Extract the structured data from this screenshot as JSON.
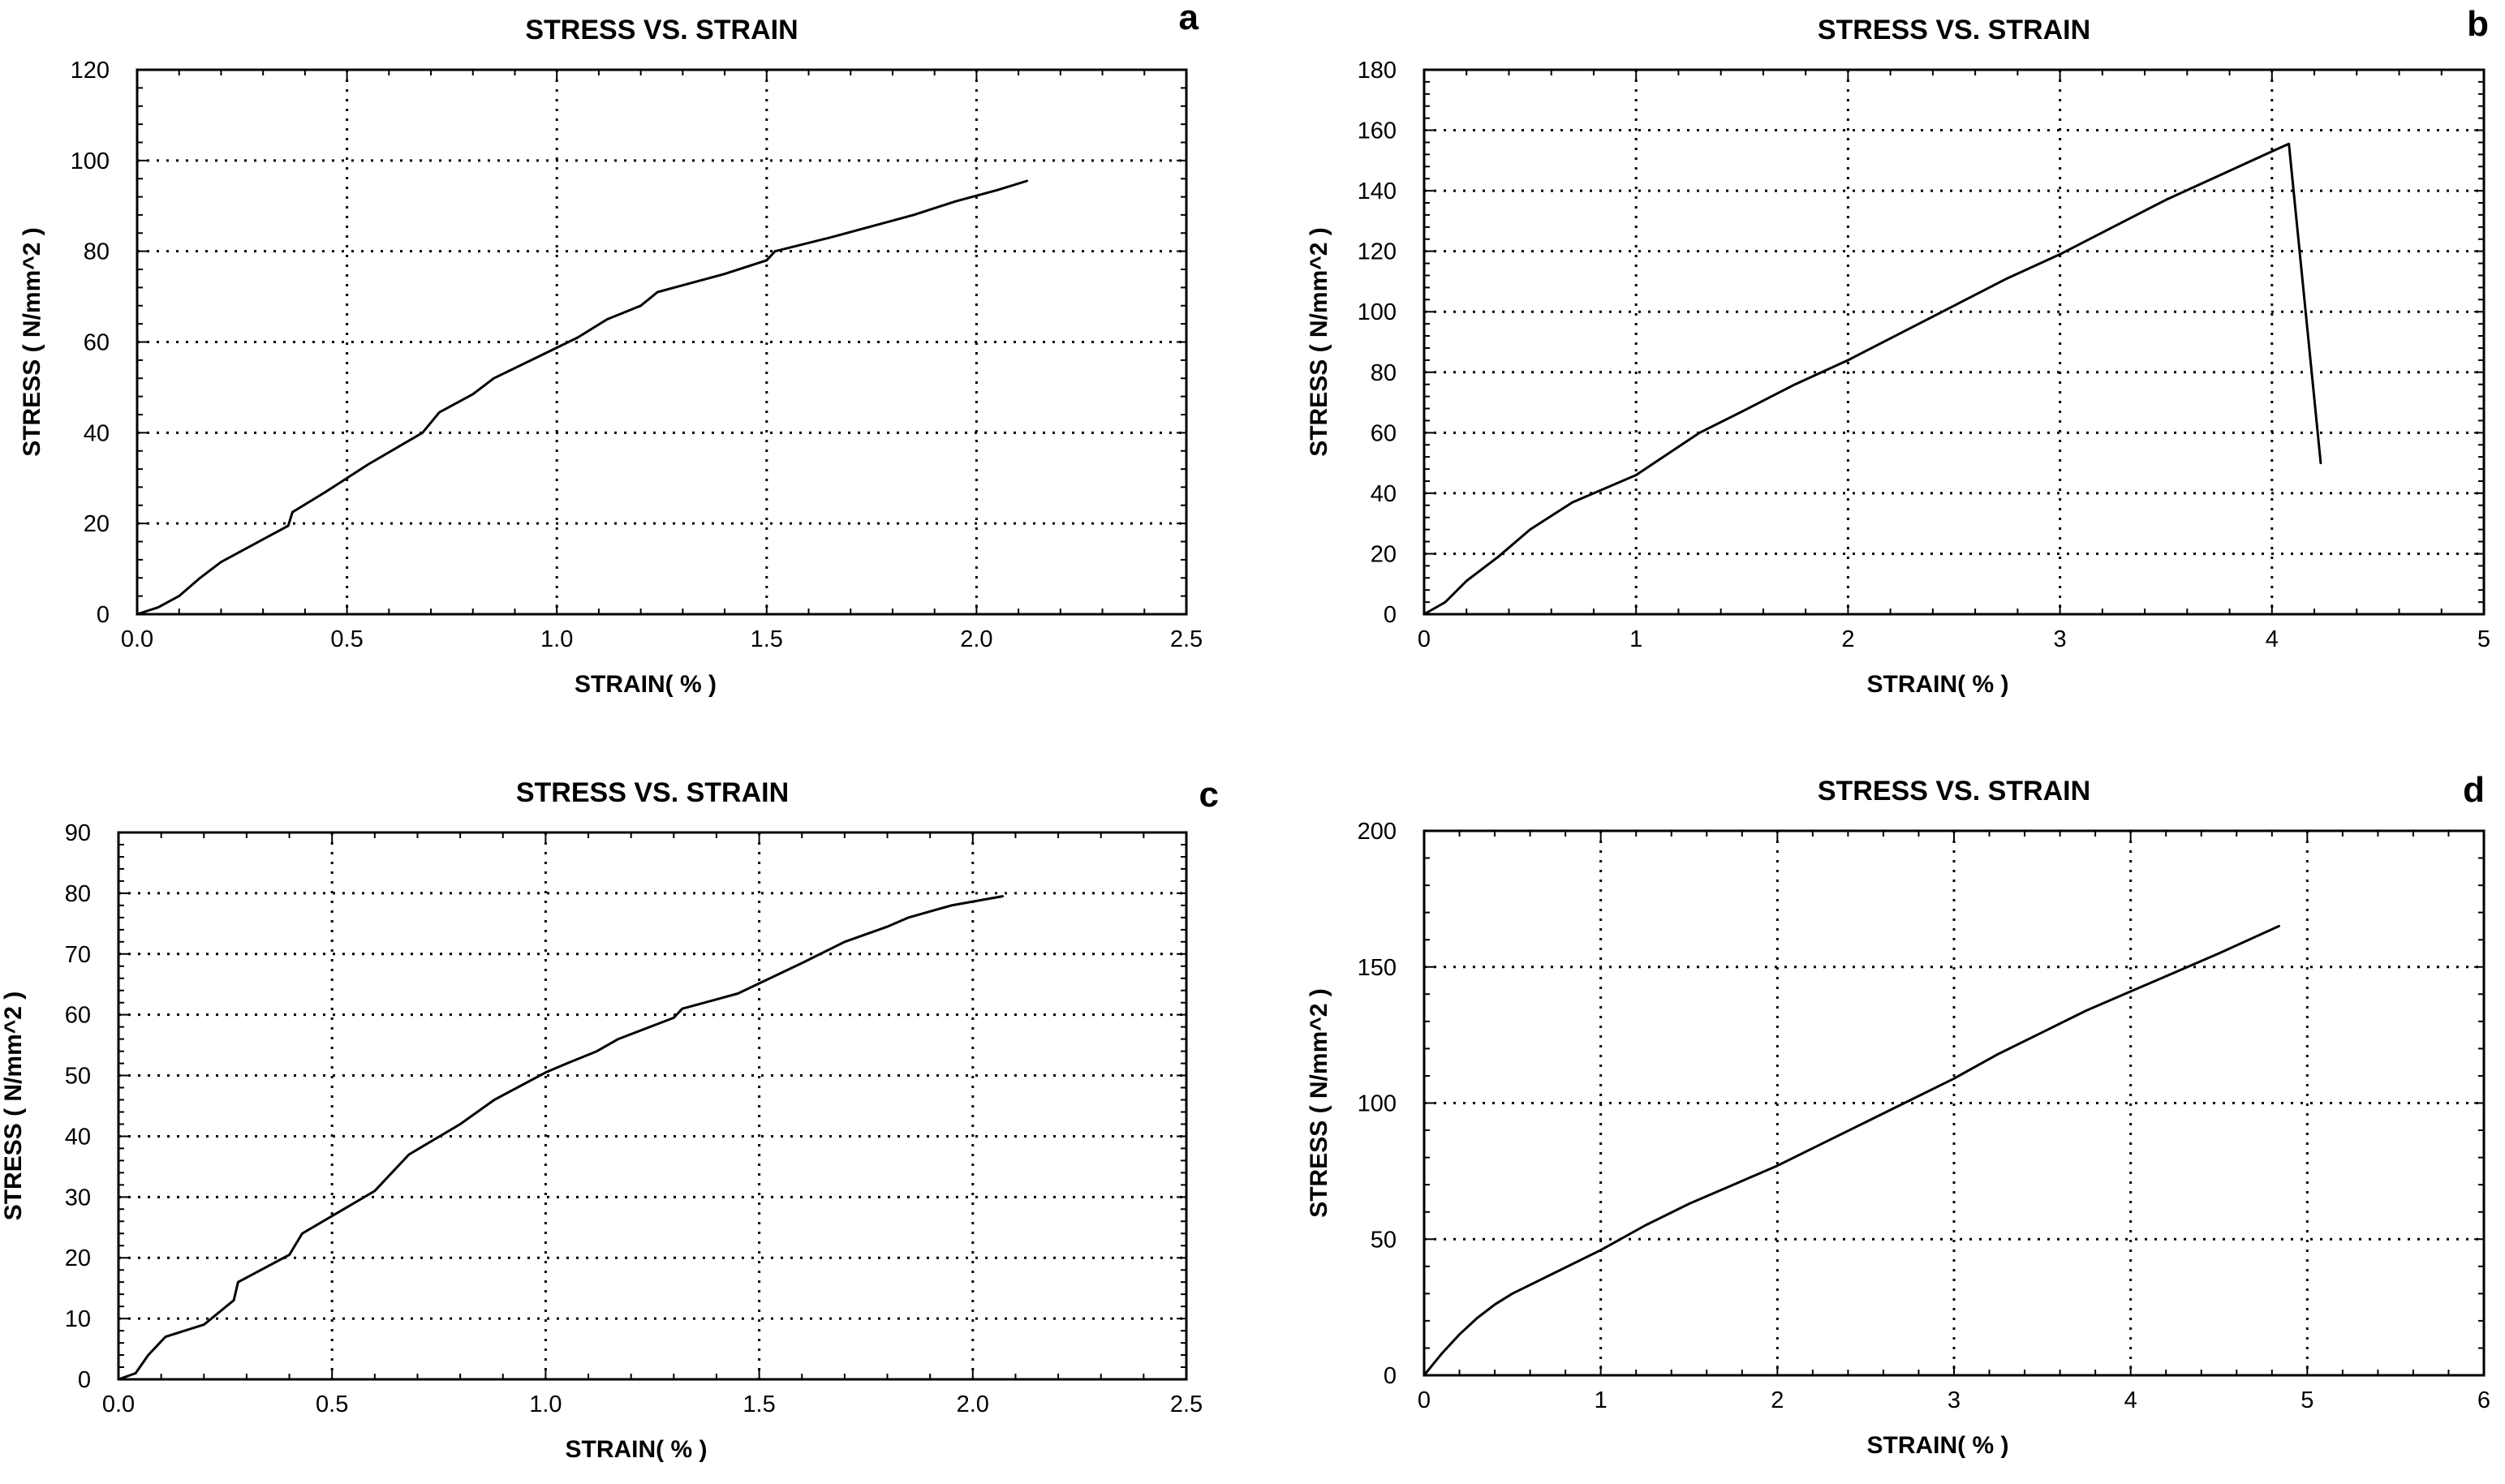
{
  "chart_data": [
    {
      "type": "line",
      "panel_label": "a",
      "title": "STRESS VS. STRAIN",
      "xlabel": "STRAIN( % )",
      "ylabel": "STRESS ( N/mm^2 )",
      "xlim": [
        0,
        2.5
      ],
      "ylim": [
        0,
        120
      ],
      "xticks": [
        "0.0",
        "0.5",
        "1.0",
        "1.5",
        "2.0",
        "2.5"
      ],
      "yticks": [
        "0",
        "20",
        "40",
        "60",
        "80",
        "100",
        "120"
      ],
      "grid": true,
      "x": [
        0.0,
        0.05,
        0.1,
        0.15,
        0.2,
        0.25,
        0.3,
        0.36,
        0.37,
        0.45,
        0.55,
        0.68,
        0.72,
        0.8,
        0.85,
        0.95,
        1.05,
        1.12,
        1.2,
        1.24,
        1.3,
        1.4,
        1.5,
        1.52,
        1.65,
        1.75,
        1.85,
        1.95,
        2.05,
        2.12
      ],
      "y": [
        0,
        1.5,
        4,
        8,
        11.5,
        14,
        16.5,
        19.5,
        22.5,
        27,
        33,
        40,
        44.5,
        48.5,
        52,
        56.5,
        61,
        65,
        68,
        71,
        72.5,
        75,
        78,
        80,
        83,
        85.5,
        88,
        91,
        93.5,
        95.5
      ]
    },
    {
      "type": "line",
      "panel_label": "b",
      "title": "STRESS VS. STRAIN",
      "xlabel": "STRAIN( % )",
      "ylabel": "STRESS ( N/mm^2 )",
      "xlim": [
        0,
        5
      ],
      "ylim": [
        0,
        180
      ],
      "xticks": [
        "0",
        "1",
        "2",
        "3",
        "4",
        "5"
      ],
      "yticks": [
        "0",
        "20",
        "40",
        "60",
        "80",
        "100",
        "120",
        "140",
        "160",
        "180"
      ],
      "grid": true,
      "x": [
        0.0,
        0.1,
        0.2,
        0.35,
        0.5,
        0.7,
        1.0,
        1.3,
        1.5,
        1.75,
        2.0,
        2.25,
        2.5,
        2.75,
        3.0,
        3.25,
        3.5,
        3.75,
        4.0,
        4.08,
        4.23
      ],
      "y": [
        0,
        4,
        11,
        19,
        28,
        37,
        46,
        60,
        67,
        76,
        84,
        93,
        102,
        111,
        119,
        128,
        137,
        145,
        153,
        155.5,
        50
      ]
    },
    {
      "type": "line",
      "panel_label": "c",
      "title": "STRESS VS. STRAIN",
      "xlabel": "STRAIN( % )",
      "ylabel": "STRESS ( N/mm^2 )",
      "xlim": [
        0,
        2.5
      ],
      "ylim": [
        0,
        90
      ],
      "xticks": [
        "0.0",
        "0.5",
        "1.0",
        "1.5",
        "2.0",
        "2.5"
      ],
      "yticks": [
        "0",
        "10",
        "20",
        "30",
        "40",
        "50",
        "60",
        "70",
        "80",
        "90"
      ],
      "grid": true,
      "x": [
        0.0,
        0.04,
        0.07,
        0.11,
        0.2,
        0.27,
        0.28,
        0.4,
        0.43,
        0.6,
        0.68,
        0.8,
        0.88,
        1.0,
        1.05,
        1.12,
        1.17,
        1.3,
        1.32,
        1.45,
        1.6,
        1.7,
        1.8,
        1.85,
        1.95,
        2.07
      ],
      "y": [
        0,
        1,
        4,
        7,
        9,
        13,
        16,
        20.5,
        24,
        31,
        37,
        42,
        46,
        50.5,
        52,
        54,
        56,
        59.5,
        61,
        63.5,
        68.5,
        72,
        74.5,
        76,
        78,
        79.5
      ]
    },
    {
      "type": "line",
      "panel_label": "d",
      "title": "STRESS VS. STRAIN",
      "xlabel": "STRAIN( % )",
      "ylabel": "STRESS ( N/mm^2 )",
      "xlim": [
        0,
        6
      ],
      "ylim": [
        0,
        200
      ],
      "xticks": [
        "0",
        "1",
        "2",
        "3",
        "4",
        "5",
        "6"
      ],
      "yticks": [
        "0",
        "50",
        "100",
        "150",
        "200"
      ],
      "grid": true,
      "x": [
        0.0,
        0.05,
        0.1,
        0.2,
        0.3,
        0.4,
        0.5,
        0.75,
        1.0,
        1.25,
        1.5,
        1.75,
        2.0,
        2.25,
        2.5,
        2.75,
        3.0,
        3.25,
        3.5,
        3.75,
        4.0,
        4.25,
        4.5,
        4.84
      ],
      "y": [
        0,
        4,
        8,
        15,
        21,
        26,
        30,
        38,
        46,
        55,
        63,
        70,
        77,
        85,
        93,
        101,
        109,
        118,
        126,
        134,
        141,
        148,
        155,
        165
      ]
    }
  ]
}
